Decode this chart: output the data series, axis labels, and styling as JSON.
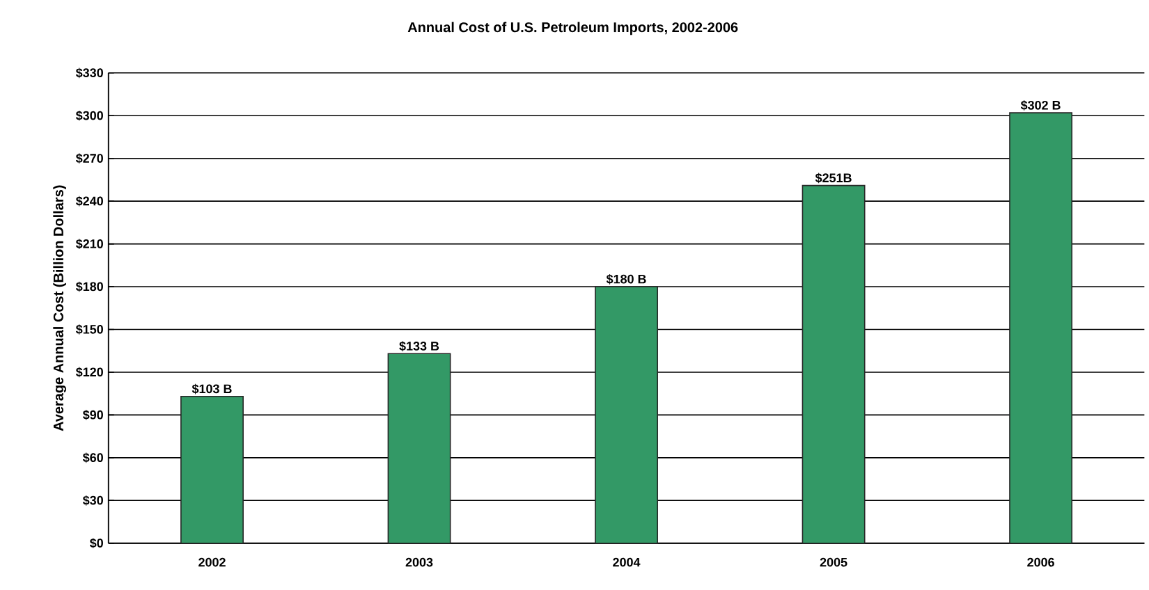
{
  "chart_data": {
    "type": "bar",
    "title": "Annual Cost of U.S. Petroleum Imports, 2002-2006",
    "ylabel": "Average Annual Cost (Billion Dollars)",
    "categories": [
      "2002",
      "2003",
      "2004",
      "2005",
      "2006"
    ],
    "values": [
      103,
      133,
      180,
      251,
      302
    ],
    "value_labels": [
      "$103 B",
      "$133 B",
      "$180 B",
      "$251B",
      "$302 B"
    ],
    "color": "#339966",
    "ylim": [
      0,
      330
    ],
    "yticks": [
      {
        "value": 0,
        "label": "$0"
      },
      {
        "value": 30,
        "label": "$30"
      },
      {
        "value": 60,
        "label": "$60"
      },
      {
        "value": 90,
        "label": "$90"
      },
      {
        "value": 120,
        "label": "$120"
      },
      {
        "value": 150,
        "label": "$150"
      },
      {
        "value": 180,
        "label": "$180"
      },
      {
        "value": 210,
        "label": "$210"
      },
      {
        "value": 240,
        "label": "$240"
      },
      {
        "value": 270,
        "label": "$270"
      },
      {
        "value": 300,
        "label": "$300"
      },
      {
        "value": 330,
        "label": "$330"
      }
    ],
    "grid": "y"
  }
}
